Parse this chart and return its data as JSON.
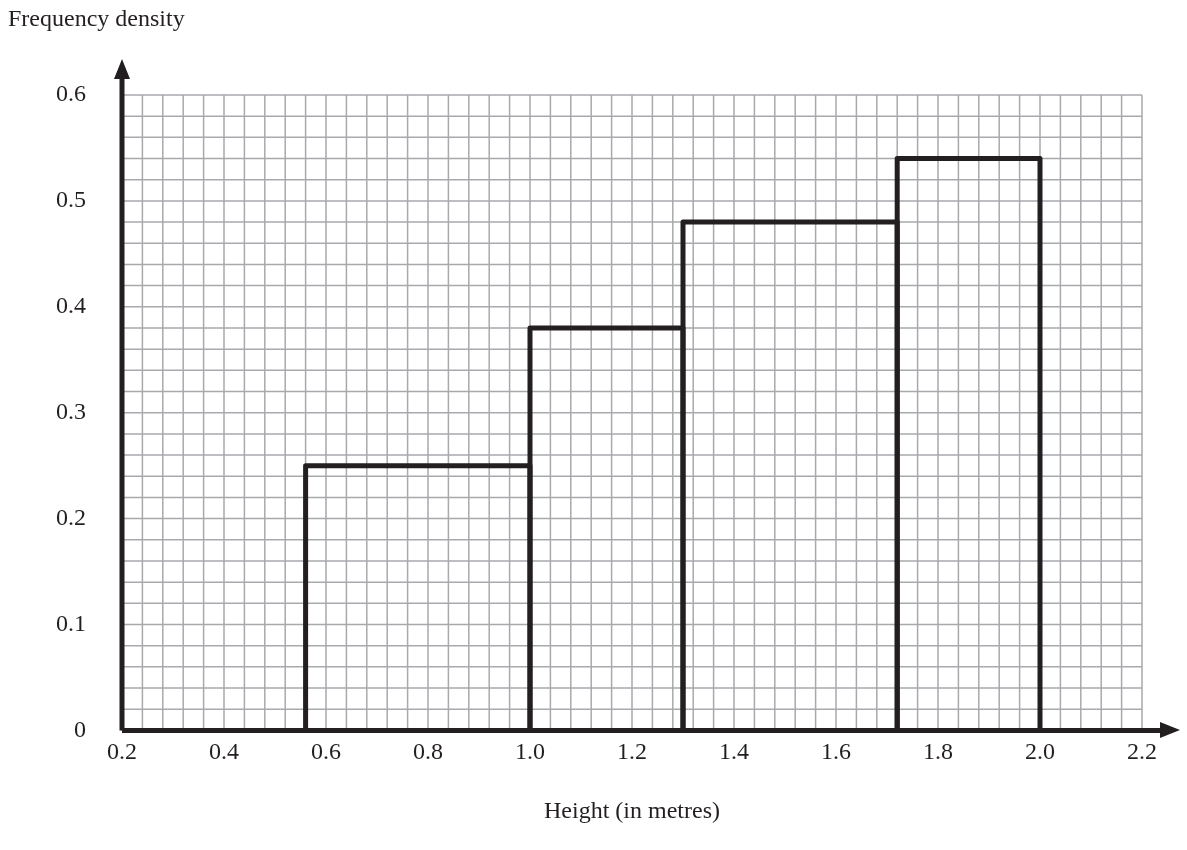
{
  "chart_data": {
    "type": "histogram",
    "xlabel": "Height (in metres)",
    "ylabel": "Frequency density",
    "bins": [
      0.56,
      1.0,
      1.3,
      1.72,
      2.0
    ],
    "values": [
      0.25,
      0.38,
      0.48,
      0.54
    ],
    "color": "#231f20",
    "xlim": [
      0.2,
      2.2
    ],
    "ylim": [
      0,
      0.6
    ],
    "xticks": [
      0.2,
      0.4,
      0.6,
      0.8,
      {
        "value": 1,
        "label": "1.0"
      },
      1.2,
      1.4,
      1.6,
      1.8,
      {
        "value": 2,
        "label": "2.0"
      },
      2.2
    ],
    "yticks": [
      0,
      0.1,
      0.2,
      0.3,
      0.4,
      0.5,
      0.6
    ],
    "grid": true,
    "legend": false
  }
}
